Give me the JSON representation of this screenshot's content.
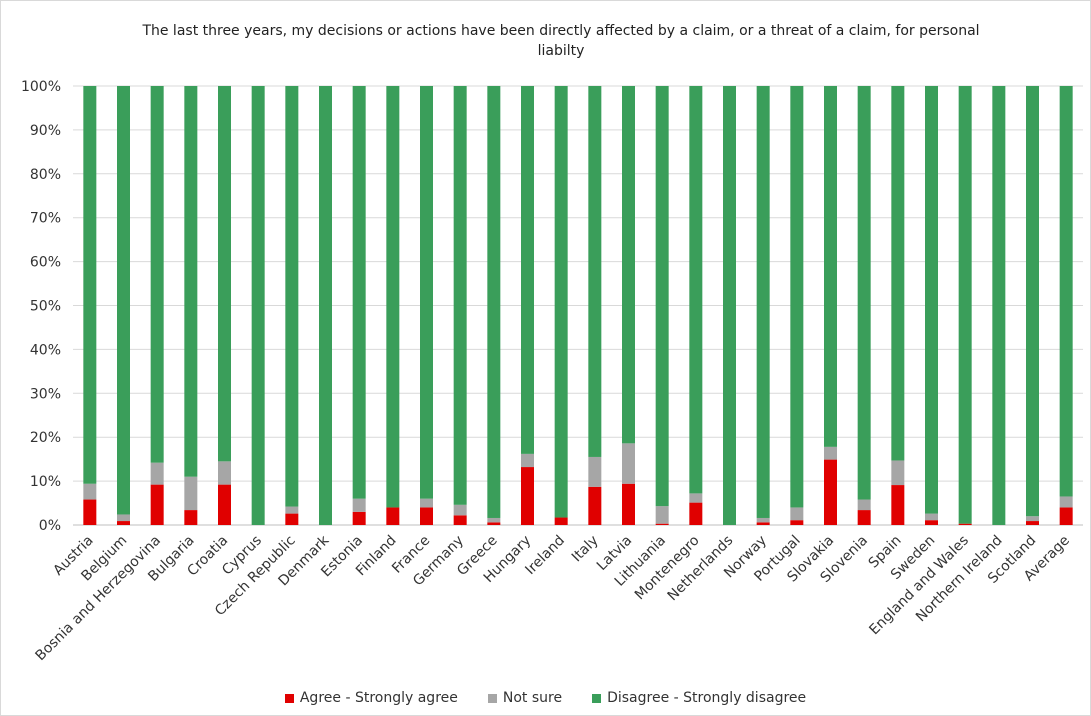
{
  "chart_data": {
    "type": "bar",
    "stacked": true,
    "normalized": true,
    "title": "The last three years, my decisions or actions have been directly affected by a claim, or a threat of a claim, for personal liabilty",
    "xlabel": "",
    "ylabel": "",
    "ylim": [
      0,
      100
    ],
    "yticks": [
      "0%",
      "10%",
      "20%",
      "30%",
      "40%",
      "50%",
      "60%",
      "70%",
      "80%",
      "90%",
      "100%"
    ],
    "grid": true,
    "legend_position": "bottom",
    "categories": [
      "Austria",
      "Belgium",
      "Bosnia and Herzegovina",
      "Bulgaria",
      "Croatia",
      "Cyprus",
      "Czech Republic",
      "Denmark",
      "Estonia",
      "Finland",
      "France",
      "Germany",
      "Greece",
      "Hungary",
      "Ireland",
      "Italy",
      "Latvia",
      "Lithuania",
      "Montenegro",
      "Netherlands",
      "Norway",
      "Portugal",
      "Slovakia",
      "Slovenia",
      "Spain",
      "Sweden",
      "England and Wales",
      "Northern Ireland",
      "Scotland",
      "Average"
    ],
    "series": [
      {
        "name": "Agree - Strongly agree",
        "color": "#e00000",
        "values": [
          5.8,
          0.9,
          9.2,
          3.4,
          9.2,
          0,
          2.6,
          0,
          3.0,
          4.0,
          4.0,
          2.2,
          0.6,
          13.2,
          1.7,
          8.7,
          9.4,
          0.3,
          5.1,
          0,
          0.6,
          1.1,
          14.9,
          3.4,
          9.1,
          1.1,
          0.3,
          0,
          0.9,
          4.0
        ]
      },
      {
        "name": "Not sure",
        "color": "#a6a6a6",
        "values": [
          3.6,
          1.5,
          5.0,
          7.6,
          5.3,
          0,
          1.6,
          0,
          3.0,
          0,
          2.0,
          2.4,
          1.0,
          3.0,
          0,
          6.8,
          9.2,
          4.0,
          2.1,
          0,
          1.0,
          2.9,
          2.9,
          2.4,
          5.6,
          1.5,
          0,
          0,
          1.1,
          2.5
        ]
      },
      {
        "name": "Disagree - Strongly disagree",
        "color": "#3a9e5a",
        "values": [
          90.6,
          97.6,
          85.8,
          89.0,
          85.5,
          100,
          95.8,
          100,
          94.0,
          96.0,
          94.0,
          95.4,
          98.4,
          83.8,
          98.3,
          84.5,
          81.4,
          95.7,
          92.8,
          100,
          98.4,
          96.0,
          82.2,
          94.2,
          85.3,
          97.4,
          99.7,
          100,
          98.0,
          93.5
        ]
      }
    ]
  }
}
